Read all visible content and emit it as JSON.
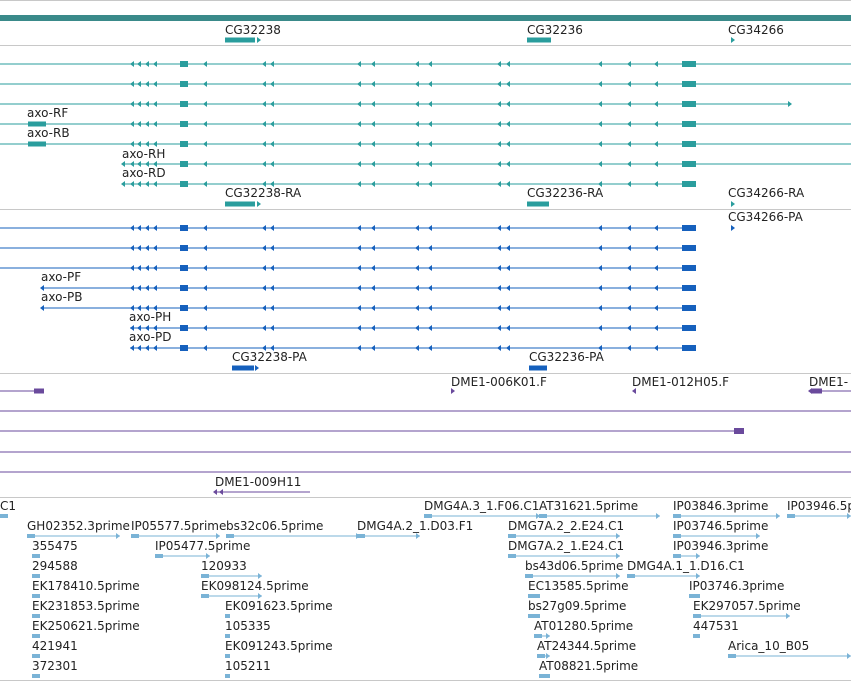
{
  "colors": {
    "gene": "#2a9d9d",
    "mrna": "#1560bd",
    "clone": "#6a4a9c",
    "est": "#7ab3d6",
    "topbar": "#3a8a8a"
  },
  "gene_labels": [
    "CG32238",
    "CG32236",
    "CG34266"
  ],
  "transcript_labels": [
    "axo-RF",
    "axo-RB",
    "axo-RH",
    "axo-RD",
    "CG32238-RA",
    "CG32236-RA",
    "CG34266-RA"
  ],
  "mrna_labels": [
    "CG34266-PA",
    "axo-PF",
    "axo-PB",
    "axo-PH",
    "axo-PD",
    "CG32238-PA",
    "CG32236-PA"
  ],
  "clone_labels": [
    "DME1-006K01.F",
    "DME1-012H05.F",
    "DME1-",
    "DME1-009H11"
  ],
  "est_labels": [
    "C1",
    "DMG4A.3_1.F06.C1",
    "AT31621.5prime",
    "IP03846.3prime",
    "IP03946.5p",
    "GH02352.3prime",
    "IP05577.5prime",
    "bs32c06.5prime",
    "DMG4A.2_1.D03.F1",
    "DMG7A.2_2.E24.C1",
    "IP03746.5prime",
    "355475",
    "IP05477.5prime",
    "DMG7A.2_1.E24.C1",
    "IP03946.3prime",
    "294588",
    "120933",
    "bs43d06.5prime",
    "DMG4A.1_1.D16.C1",
    "EK178410.5prime",
    "EK098124.5prime",
    "EC13585.5prime",
    "IP03746.3prime",
    "EK231853.5prime",
    "EK091623.5prime",
    "bs27g09.5prime",
    "EK297057.5prime",
    "EK250621.5prime",
    "105335",
    "AT01280.5prime",
    "447531",
    "421941",
    "EK091243.5prime",
    "AT24344.5prime",
    "Arica_10_B05",
    "372301",
    "105211",
    "AT08821.5prime"
  ]
}
